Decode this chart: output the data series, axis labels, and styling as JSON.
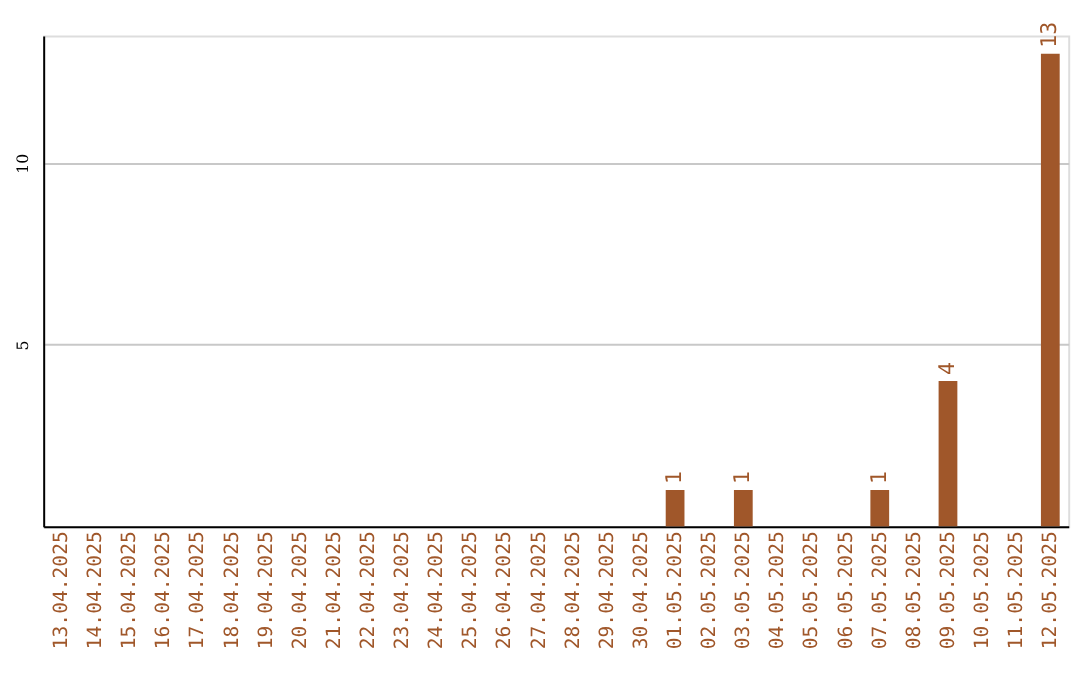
{
  "chart_data": {
    "type": "bar",
    "categories": [
      "13.04.2025",
      "14.04.2025",
      "15.04.2025",
      "16.04.2025",
      "17.04.2025",
      "18.04.2025",
      "19.04.2025",
      "20.04.2025",
      "21.04.2025",
      "22.04.2025",
      "23.04.2025",
      "24.04.2025",
      "25.04.2025",
      "26.04.2025",
      "27.04.2025",
      "28.04.2025",
      "29.04.2025",
      "30.04.2025",
      "01.05.2025",
      "02.05.2025",
      "03.05.2025",
      "04.05.2025",
      "05.05.2025",
      "06.05.2025",
      "07.05.2025",
      "08.05.2025",
      "09.05.2025",
      "10.05.2025",
      "11.05.2025",
      "12.05.2025"
    ],
    "values": [
      null,
      null,
      null,
      null,
      null,
      null,
      null,
      null,
      null,
      null,
      null,
      null,
      null,
      null,
      null,
      null,
      null,
      null,
      1,
      null,
      1,
      null,
      null,
      null,
      1,
      null,
      4,
      null,
      null,
      13
    ],
    "color": "#a0572a",
    "ylim": [
      0,
      13.5
    ],
    "yticks": [
      5,
      10
    ],
    "grid": "y",
    "data_labels": true
  }
}
